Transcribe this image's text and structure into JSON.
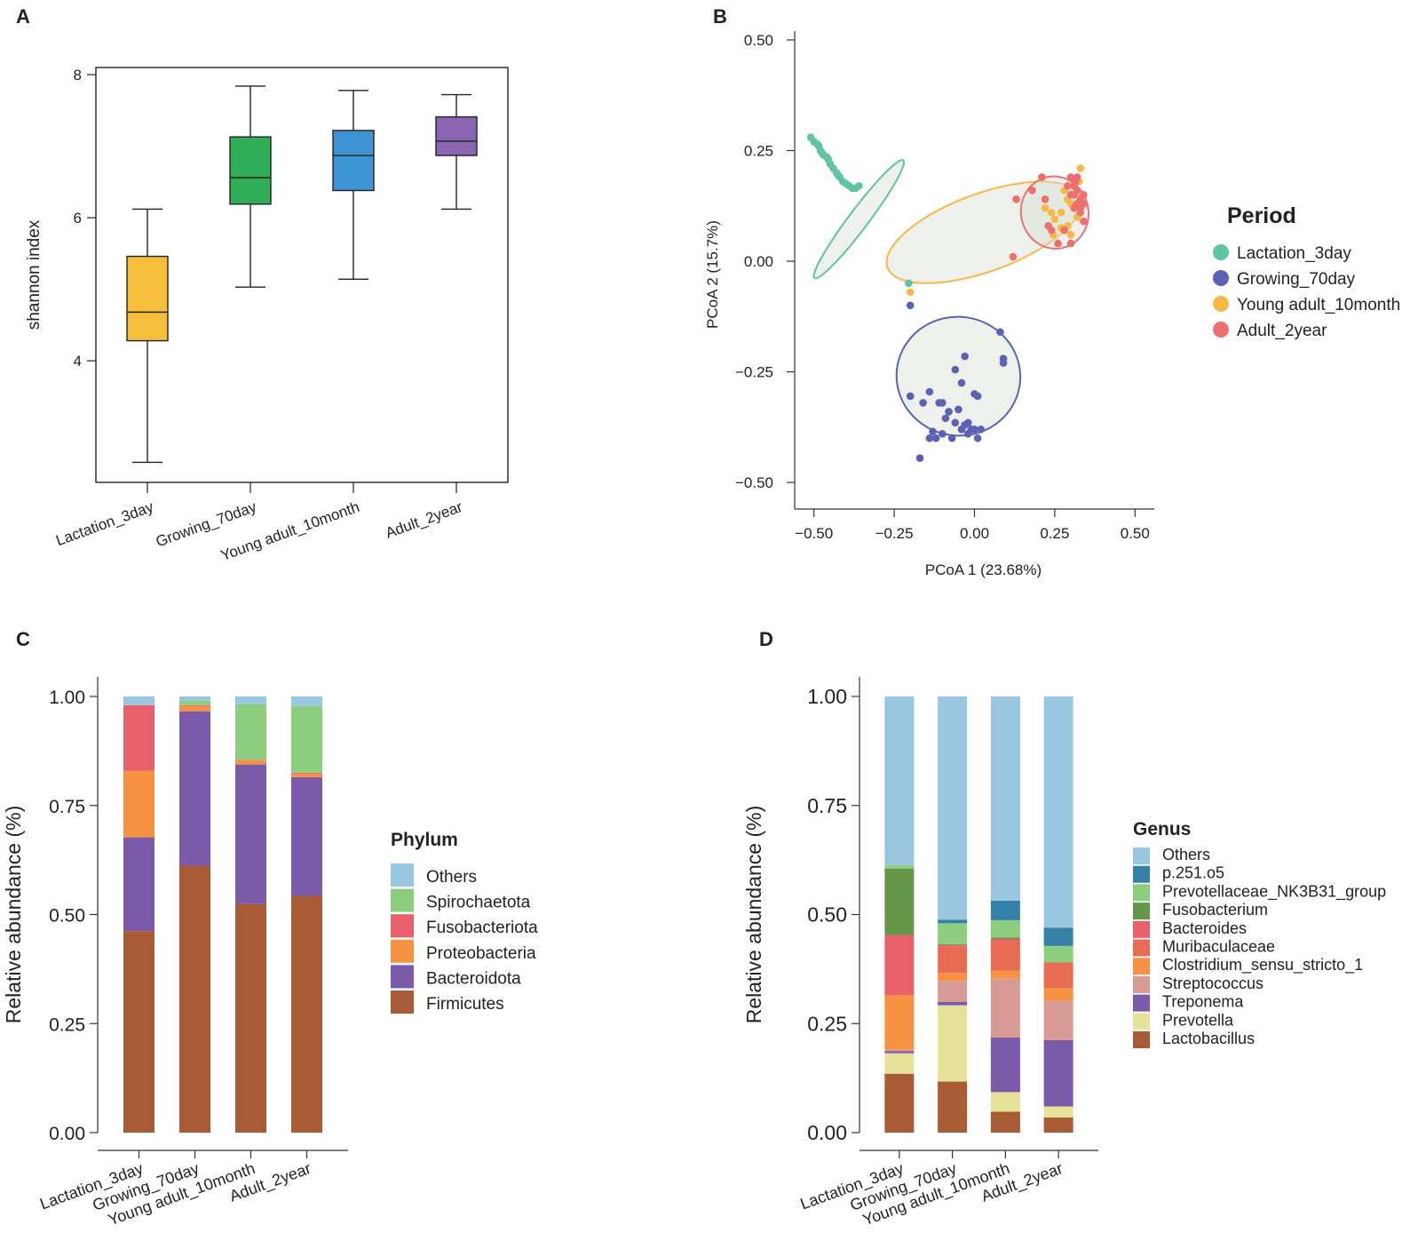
{
  "chart_data": [
    {
      "panel": "A",
      "type": "boxplot",
      "ylabel": "shannon index",
      "ylim": [
        2.3,
        8.1
      ],
      "yticks": [
        4,
        6,
        8
      ],
      "categories": [
        "Lactation_3day",
        "Growing_70day",
        "Young adult_10month",
        "Adult_2year"
      ],
      "colors": [
        "#f5bf3c",
        "#2fae57",
        "#3e93d3",
        "#8a65b1"
      ],
      "boxes": [
        {
          "min": 2.58,
          "q1": 4.28,
          "median": 4.68,
          "q3": 5.46,
          "max": 6.12
        },
        {
          "min": 5.03,
          "q1": 6.19,
          "median": 6.56,
          "q3": 7.13,
          "max": 7.84
        },
        {
          "min": 5.14,
          "q1": 6.38,
          "median": 6.87,
          "q3": 7.22,
          "max": 7.78
        },
        {
          "min": 6.12,
          "q1": 6.87,
          "median": 7.07,
          "q3": 7.41,
          "max": 7.72
        }
      ]
    },
    {
      "panel": "B",
      "type": "scatter",
      "xlabel": "PCoA 1 (23.68%)",
      "ylabel": "PCoA 2 (15.7%)",
      "xlim": [
        -0.56,
        0.56
      ],
      "ylim": [
        -0.56,
        0.52
      ],
      "xticks": [
        -0.5,
        -0.25,
        0.0,
        0.25,
        0.5
      ],
      "xtick_labels": [
        "−0.50",
        "−0.25",
        "0.00",
        "0.25",
        "0.50"
      ],
      "yticks": [
        0.5,
        0.25,
        0.0,
        -0.25,
        -0.5
      ],
      "ytick_labels": [
        "0.50",
        "0.25",
        "0.00",
        "−0.25",
        "−0.50"
      ],
      "legend_title": "Period",
      "series": [
        {
          "name": "Lactation_3day",
          "color": "#5fc4a1",
          "ellipse": {
            "cx": -0.36,
            "cy": 0.095,
            "rx": 0.23,
            "ry": 0.022,
            "angle_deg": -53
          },
          "points": [
            [
              -0.51,
              0.28
            ],
            [
              -0.5,
              0.27
            ],
            [
              -0.49,
              0.265
            ],
            [
              -0.485,
              0.26
            ],
            [
              -0.48,
              0.25
            ],
            [
              -0.475,
              0.245
            ],
            [
              -0.47,
              0.24
            ],
            [
              -0.46,
              0.235
            ],
            [
              -0.455,
              0.23
            ],
            [
              -0.45,
              0.22
            ],
            [
              -0.44,
              0.21
            ],
            [
              -0.43,
              0.2
            ],
            [
              -0.425,
              0.195
            ],
            [
              -0.42,
              0.19
            ],
            [
              -0.41,
              0.18
            ],
            [
              -0.4,
              0.175
            ],
            [
              -0.39,
              0.17
            ],
            [
              -0.38,
              0.165
            ],
            [
              -0.37,
              0.165
            ],
            [
              -0.36,
              0.17
            ],
            [
              -0.205,
              -0.05
            ]
          ]
        },
        {
          "name": "Growing_70day",
          "color": "#5b62b6",
          "ellipse": {
            "cx": -0.05,
            "cy": -0.26,
            "rx": 0.185,
            "ry": 0.14,
            "angle_deg": -82
          },
          "points": [
            [
              -0.2,
              -0.1
            ],
            [
              -0.2,
              -0.305
            ],
            [
              -0.16,
              -0.32
            ],
            [
              -0.14,
              -0.295
            ],
            [
              -0.11,
              -0.32
            ],
            [
              -0.1,
              -0.32
            ],
            [
              -0.09,
              -0.355
            ],
            [
              -0.08,
              -0.34
            ],
            [
              -0.06,
              -0.245
            ],
            [
              -0.05,
              -0.335
            ],
            [
              -0.04,
              -0.275
            ],
            [
              -0.03,
              -0.215
            ],
            [
              -0.03,
              -0.37
            ],
            [
              -0.04,
              -0.38
            ],
            [
              -0.02,
              -0.39
            ],
            [
              -0.01,
              -0.38
            ],
            [
              0.0,
              -0.3
            ],
            [
              0.01,
              -0.305
            ],
            [
              -0.02,
              -0.365
            ],
            [
              0.0,
              -0.38
            ],
            [
              0.01,
              -0.4
            ],
            [
              0.02,
              -0.38
            ],
            [
              0.08,
              -0.16
            ],
            [
              0.09,
              -0.22
            ],
            [
              0.09,
              -0.23
            ],
            [
              -0.06,
              -0.365
            ],
            [
              -0.12,
              -0.4
            ],
            [
              -0.1,
              -0.39
            ],
            [
              -0.14,
              -0.4
            ],
            [
              -0.17,
              -0.445
            ],
            [
              -0.13,
              -0.385
            ],
            [
              -0.07,
              -0.4
            ]
          ]
        },
        {
          "name": "Young adult_10month",
          "color": "#f7b845",
          "ellipse": {
            "cx": 0.03,
            "cy": 0.065,
            "rx": 0.32,
            "ry": 0.088,
            "angle_deg": -20
          },
          "points": [
            [
              0.22,
              0.12
            ],
            [
              0.24,
              0.11
            ],
            [
              0.245,
              0.06
            ],
            [
              0.25,
              0.095
            ],
            [
              0.27,
              0.11
            ],
            [
              0.28,
              0.16
            ],
            [
              0.29,
              0.14
            ],
            [
              0.29,
              0.08
            ],
            [
              0.3,
              0.13
            ],
            [
              0.3,
              0.06
            ],
            [
              0.31,
              0.15
            ],
            [
              0.31,
              0.12
            ],
            [
              0.32,
              0.1
            ],
            [
              0.33,
              0.21
            ],
            [
              0.325,
              0.18
            ],
            [
              0.21,
              0.19
            ],
            [
              -0.2,
              -0.07
            ],
            [
              0.33,
              0.11
            ],
            [
              0.27,
              0.075
            ]
          ]
        },
        {
          "name": "Adult_2year",
          "color": "#ee6f6f",
          "ellipse": {
            "cx": 0.25,
            "cy": 0.11,
            "rx": 0.105,
            "ry": 0.082,
            "angle_deg": -12
          },
          "points": [
            [
              0.13,
              0.14
            ],
            [
              0.12,
              0.01
            ],
            [
              0.18,
              0.16
            ],
            [
              0.21,
              0.19
            ],
            [
              0.22,
              0.14
            ],
            [
              0.23,
              0.08
            ],
            [
              0.24,
              0.07
            ],
            [
              0.26,
              0.04
            ],
            [
              0.28,
              0.07
            ],
            [
              0.29,
              0.17
            ],
            [
              0.3,
              0.19
            ],
            [
              0.3,
              0.15
            ],
            [
              0.31,
              0.17
            ],
            [
              0.31,
              0.12
            ],
            [
              0.32,
              0.16
            ],
            [
              0.32,
              0.13
            ],
            [
              0.33,
              0.14
            ],
            [
              0.33,
              0.12
            ],
            [
              0.33,
              0.11
            ],
            [
              0.34,
              0.15
            ],
            [
              0.34,
              0.13
            ],
            [
              0.34,
              0.09
            ],
            [
              0.3,
              0.04
            ],
            [
              0.31,
              0.15
            ],
            [
              0.32,
              0.19
            ],
            [
              0.315,
              0.18
            ]
          ]
        }
      ]
    },
    {
      "panel": "C",
      "type": "stacked_bar",
      "ylabel": "Relative abundance (%)",
      "ylim": [
        0,
        1
      ],
      "yticks": [
        0.0,
        0.25,
        0.5,
        0.75,
        1.0
      ],
      "ytick_labels": [
        "0.00",
        "0.25",
        "0.50",
        "0.75",
        "1.00"
      ],
      "categories": [
        "Lactation_3day",
        "Growing_70day",
        "Young adult_10month",
        "Adult_2year"
      ],
      "legend_title": "Phylum",
      "legend_order": [
        "Others",
        "Spirochaetota",
        "Fusobacteriota",
        "Proteobacteria",
        "Bacteroidota",
        "Firmicutes"
      ],
      "series": [
        {
          "name": "Firmicutes",
          "color": "#a85b34",
          "values": [
            0.462,
            0.612,
            0.524,
            0.543
          ]
        },
        {
          "name": "Bacteroidota",
          "color": "#7a5aa9",
          "values": [
            0.215,
            0.354,
            0.32,
            0.272
          ]
        },
        {
          "name": "Proteobacteria",
          "color": "#f69242",
          "values": [
            0.153,
            0.012,
            0.01,
            0.008
          ]
        },
        {
          "name": "Fusobacteriota",
          "color": "#e8616a",
          "values": [
            0.15,
            0.002,
            0.001,
            0.002
          ]
        },
        {
          "name": "Spirochaetota",
          "color": "#8dcd7e",
          "values": [
            0.0,
            0.01,
            0.127,
            0.153
          ]
        },
        {
          "name": "Others",
          "color": "#99c7df",
          "values": [
            0.02,
            0.01,
            0.018,
            0.022
          ]
        }
      ]
    },
    {
      "panel": "D",
      "type": "stacked_bar",
      "ylabel": "Relative abundance (%)",
      "ylim": [
        0,
        1
      ],
      "yticks": [
        0.0,
        0.25,
        0.5,
        0.75,
        1.0
      ],
      "ytick_labels": [
        "0.00",
        "0.25",
        "0.50",
        "0.75",
        "1.00"
      ],
      "categories": [
        "Lactation_3day",
        "Growing_70day",
        "Young adult_10month",
        "Adult_2year"
      ],
      "legend_title": "Genus",
      "legend_order": [
        "Others",
        "p.251.o5",
        "Prevotellaceae_NK3B31_group",
        "Fusobacterium",
        "Bacteroides",
        "Muribaculaceae",
        "Clostridium_sensu_stricto_1",
        "Streptococcus",
        "Treponema",
        "Prevotella",
        "Lactobacillus"
      ],
      "series": [
        {
          "name": "Lactobacillus",
          "color": "#a85b34",
          "values": [
            0.135,
            0.117,
            0.048,
            0.035
          ]
        },
        {
          "name": "Prevotella",
          "color": "#e6e29a",
          "values": [
            0.047,
            0.175,
            0.045,
            0.025
          ]
        },
        {
          "name": "Treponema",
          "color": "#7a5aa9",
          "values": [
            0.005,
            0.008,
            0.125,
            0.152
          ]
        },
        {
          "name": "Streptococcus",
          "color": "#d89a94",
          "values": [
            0.003,
            0.048,
            0.135,
            0.09
          ]
        },
        {
          "name": "Clostridium_sensu_stricto_1",
          "color": "#f69242",
          "values": [
            0.125,
            0.018,
            0.018,
            0.03
          ]
        },
        {
          "name": "Muribaculaceae",
          "color": "#e86c54",
          "values": [
            0.0,
            0.061,
            0.068,
            0.058
          ]
        },
        {
          "name": "Bacteroides",
          "color": "#e8616a",
          "values": [
            0.138,
            0.003,
            0.005,
            0.0
          ]
        },
        {
          "name": "Fusobacterium",
          "color": "#66964a",
          "values": [
            0.152,
            0.002,
            0.003,
            0.0
          ]
        },
        {
          "name": "Prevotellaceae_NK3B31_group",
          "color": "#8dcd7e",
          "values": [
            0.008,
            0.048,
            0.04,
            0.038
          ]
        },
        {
          "name": "p.251.o5",
          "color": "#3580a6",
          "values": [
            0.0,
            0.008,
            0.045,
            0.042
          ]
        },
        {
          "name": "Others",
          "color": "#99c7df",
          "values": [
            0.387,
            0.512,
            0.468,
            0.53
          ]
        }
      ]
    }
  ]
}
